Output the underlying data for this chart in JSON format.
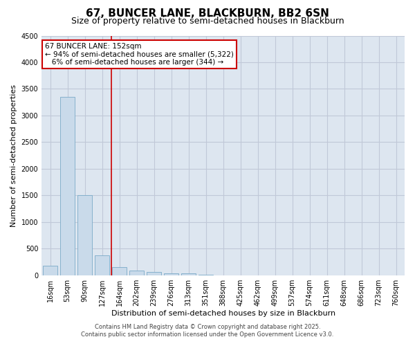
{
  "title1": "67, BUNCER LANE, BLACKBURN, BB2 6SN",
  "title2": "Size of property relative to semi-detached houses in Blackburn",
  "xlabel": "Distribution of semi-detached houses by size in Blackburn",
  "ylabel": "Number of semi-detached properties",
  "categories": [
    "16sqm",
    "53sqm",
    "90sqm",
    "127sqm",
    "164sqm",
    "202sqm",
    "239sqm",
    "276sqm",
    "313sqm",
    "351sqm",
    "388sqm",
    "425sqm",
    "462sqm",
    "499sqm",
    "537sqm",
    "574sqm",
    "611sqm",
    "648sqm",
    "686sqm",
    "723sqm",
    "760sqm"
  ],
  "values": [
    175,
    3350,
    1500,
    375,
    150,
    85,
    55,
    30,
    30,
    5,
    0,
    0,
    0,
    0,
    0,
    0,
    0,
    0,
    0,
    0,
    0
  ],
  "bar_color": "#c9daea",
  "bar_edge_color": "#7aaac8",
  "grid_color": "#c0c8d8",
  "background_color": "#dde6f0",
  "vline_x": 3.55,
  "vline_color": "#cc0000",
  "annotation_line1": "67 BUNCER LANE: 152sqm",
  "annotation_line2": "← 94% of semi-detached houses are smaller (5,322)",
  "annotation_line3": "   6% of semi-detached houses are larger (344) →",
  "annotation_box_color": "#cc0000",
  "footer1": "Contains HM Land Registry data © Crown copyright and database right 2025.",
  "footer2": "Contains public sector information licensed under the Open Government Licence v3.0.",
  "ylim": [
    0,
    4500
  ],
  "yticks": [
    0,
    500,
    1000,
    1500,
    2000,
    2500,
    3000,
    3500,
    4000,
    4500
  ],
  "title1_fontsize": 11,
  "title2_fontsize": 9,
  "xlabel_fontsize": 8,
  "ylabel_fontsize": 8,
  "tick_fontsize": 7,
  "annotation_fontsize": 7.5,
  "footer_fontsize": 6
}
